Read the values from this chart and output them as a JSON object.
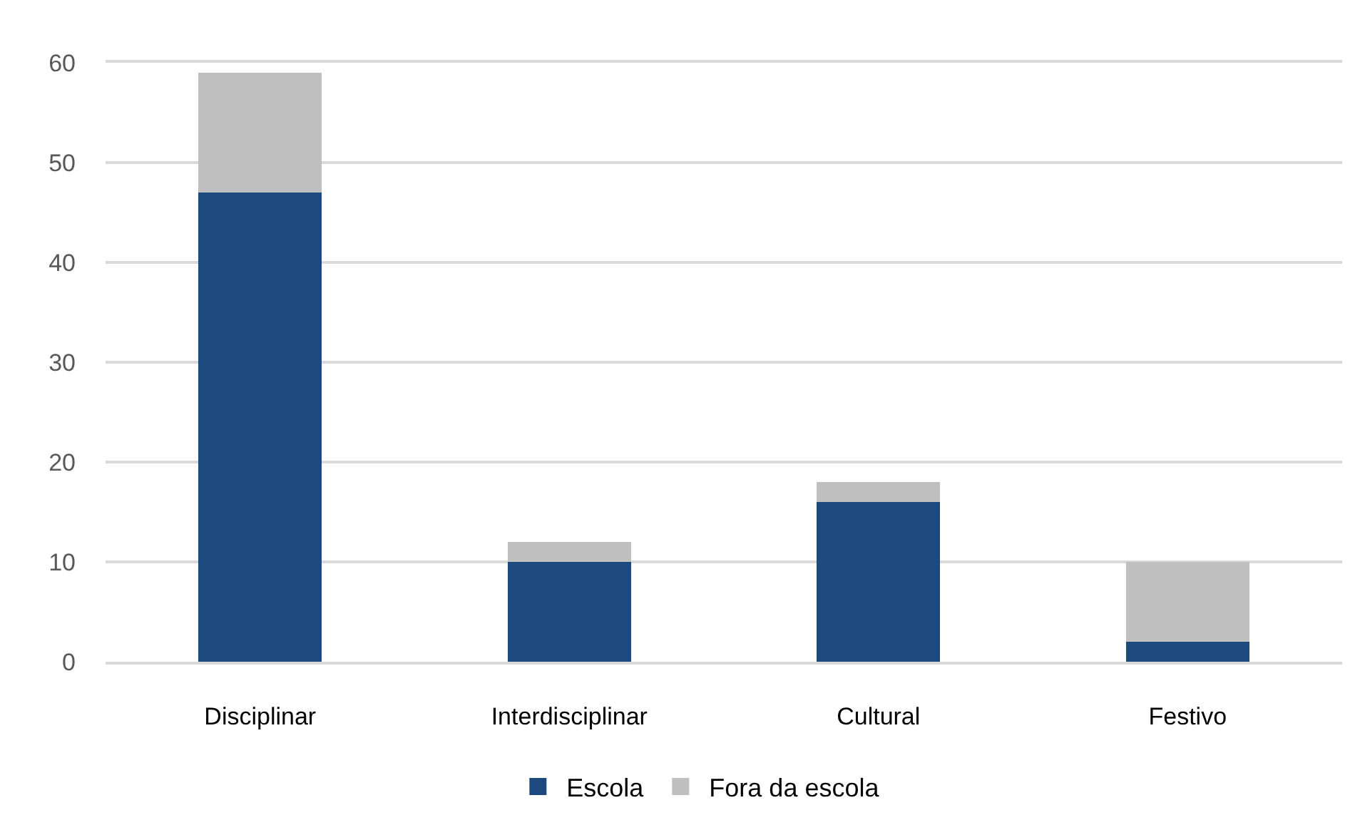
{
  "chart_data": {
    "type": "bar",
    "stacked": true,
    "categories": [
      "Disciplinar",
      "Interdisciplinar",
      "Cultural",
      "Festivo"
    ],
    "series": [
      {
        "name": "Escola",
        "color": "#1c4a7e",
        "values": [
          47,
          10,
          16,
          2
        ]
      },
      {
        "name": "Fora da escola",
        "color": "#bfbfbf",
        "values": [
          12,
          2,
          2,
          8
        ]
      }
    ],
    "ylim": [
      0,
      60
    ],
    "yticks": [
      0,
      10,
      20,
      30,
      40,
      50,
      60
    ],
    "grid": "y",
    "legend": "bottom"
  }
}
